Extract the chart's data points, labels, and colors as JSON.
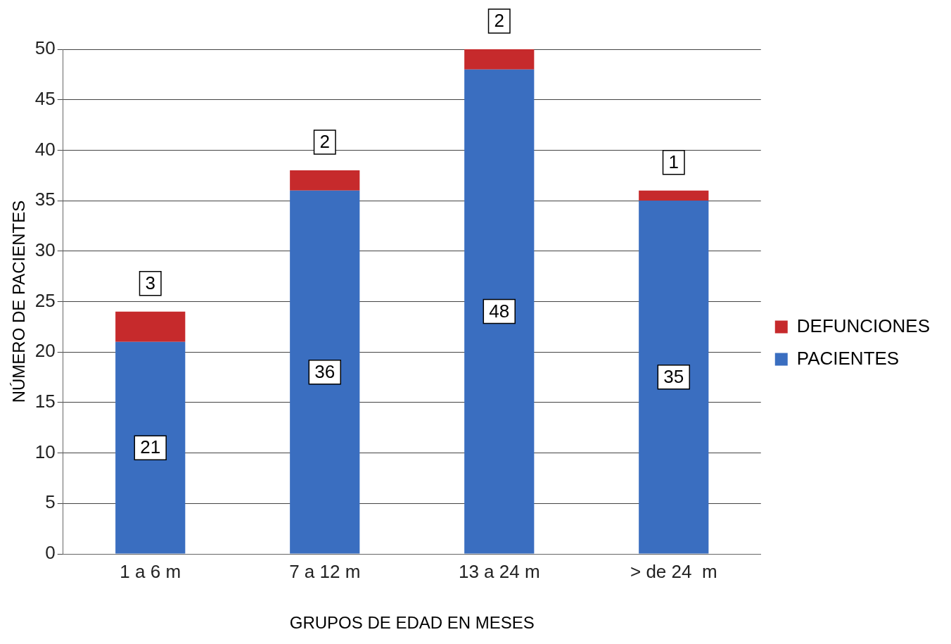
{
  "chart_data": {
    "type": "bar",
    "stacked": true,
    "xlabel": "GRUPOS DE EDAD EN MESES",
    "ylabel": "NÚMERO DE PACIENTES",
    "categories": [
      "1 a 6 m",
      "7 a 12 m",
      "13 a 24 m",
      "> de 24  m"
    ],
    "series": [
      {
        "name": "PACIENTES",
        "color": "#3a6ec0",
        "values": [
          21,
          36,
          48,
          35
        ]
      },
      {
        "name": "DEFUNCIONES",
        "color": "#c62a2c",
        "values": [
          3,
          2,
          2,
          1
        ]
      }
    ],
    "ylim": [
      0,
      50
    ],
    "yticks": [
      0,
      5,
      10,
      15,
      20,
      25,
      30,
      35,
      40,
      45,
      50
    ],
    "grid": "y",
    "legend": "right",
    "data_labels": true
  }
}
